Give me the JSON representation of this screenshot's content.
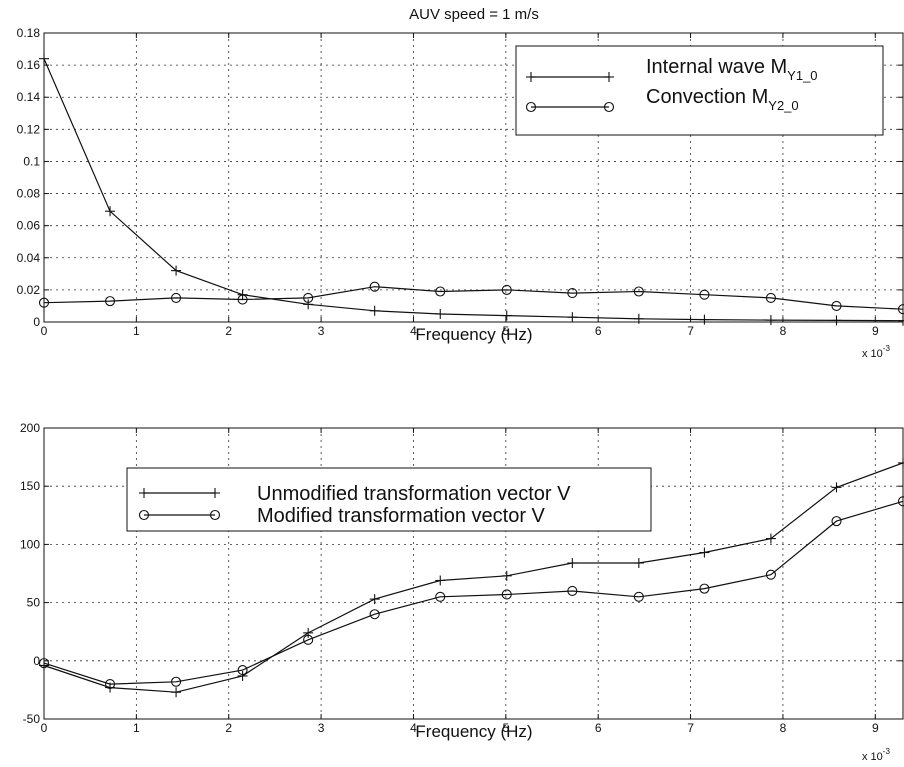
{
  "chart_data": [
    {
      "type": "line",
      "title": "AUV speed = 1 m/s",
      "xlabel": "Frequency (Hz)",
      "x_multiplier": "x 10",
      "x_multiplier_exp": "-3",
      "xlim": [
        0,
        9.3
      ],
      "ylim": [
        0,
        0.18
      ],
      "x_ticks": [
        0,
        1,
        2,
        3,
        4,
        5,
        6,
        7,
        8,
        9
      ],
      "y_ticks": [
        0,
        0.02,
        0.04,
        0.06,
        0.08,
        0.1,
        0.12,
        0.14,
        0.16,
        0.18
      ],
      "x_tick_labels": [
        "0",
        "1",
        "2",
        "3",
        "4",
        "5",
        "6",
        "7",
        "8",
        "9"
      ],
      "y_tick_labels": [
        "0",
        "0.02",
        "0.04",
        "0.06",
        "0.08",
        "0.1",
        "0.12",
        "0.14",
        "0.16",
        "0.18"
      ],
      "grid": true,
      "legend_position": "top-right",
      "x": [
        0,
        0.715,
        1.43,
        2.15,
        2.86,
        3.58,
        4.29,
        5.01,
        5.72,
        6.44,
        7.15,
        7.87,
        8.58,
        9.3
      ],
      "series": [
        {
          "name": "Internal wave M",
          "name_sub": "Y1_0",
          "marker": "plus",
          "values": [
            0.164,
            0.069,
            0.032,
            0.017,
            0.011,
            0.007,
            0.005,
            0.004,
            0.003,
            0.002,
            0.0015,
            0.0012,
            0.001,
            0.0008
          ]
        },
        {
          "name": "Convection M",
          "name_sub": "Y2_0",
          "marker": "circle",
          "values": [
            0.012,
            0.013,
            0.015,
            0.014,
            0.015,
            0.022,
            0.019,
            0.02,
            0.018,
            0.019,
            0.017,
            0.015,
            0.01,
            0.008
          ]
        }
      ]
    },
    {
      "type": "line",
      "xlabel": "Frequency (Hz)",
      "x_multiplier": "x 10",
      "x_multiplier_exp": "-3",
      "xlim": [
        0,
        9.3
      ],
      "ylim": [
        -50,
        200
      ],
      "x_ticks": [
        0,
        1,
        2,
        3,
        4,
        5,
        6,
        7,
        8,
        9
      ],
      "y_ticks": [
        -50,
        0,
        50,
        100,
        150,
        200
      ],
      "x_tick_labels": [
        "0",
        "1",
        "2",
        "3",
        "4",
        "5",
        "6",
        "7",
        "8",
        "9"
      ],
      "y_tick_labels": [
        "-50",
        "0",
        "50",
        "100",
        "150",
        "200"
      ],
      "grid": true,
      "legend_position": "top-left",
      "x": [
        0,
        0.715,
        1.43,
        2.15,
        2.86,
        3.58,
        4.29,
        5.01,
        5.72,
        6.44,
        7.15,
        7.87,
        8.58,
        9.3
      ],
      "series": [
        {
          "name": "Unmodified transformation vector V",
          "marker": "plus",
          "values": [
            -4,
            -23,
            -27,
            -13,
            24,
            53,
            69,
            73,
            84,
            84,
            93,
            105,
            149,
            170
          ]
        },
        {
          "name": "Modified transformation vector V",
          "marker": "circle",
          "values": [
            -2,
            -20,
            -18,
            -8,
            18,
            40,
            55,
            57,
            60,
            55,
            62,
            74,
            120,
            137
          ]
        }
      ]
    }
  ]
}
